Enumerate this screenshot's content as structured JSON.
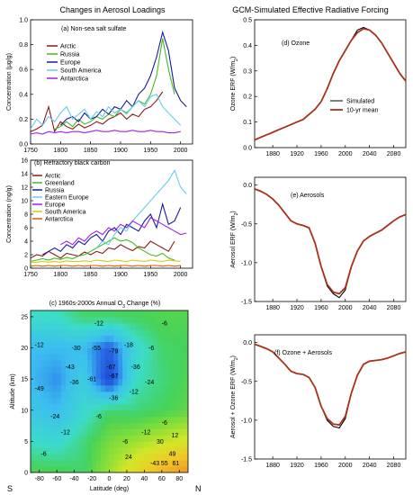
{
  "left_title": "Changes in Aerosol Loadings",
  "right_title": "GCM-Simulated Effective Radiative Forcing",
  "chart_data": [
    {
      "type": "line",
      "id": "a",
      "title": "(a) Non-sea salt sulfate",
      "ylabel": "Concentration (μg/g)",
      "xlim": [
        1750,
        2020
      ],
      "ylim": [
        0,
        1.0
      ],
      "xticks": [
        "1750",
        "1800",
        "1850",
        "1900",
        "1950",
        "2000"
      ],
      "yticks": [
        "0.0",
        "0.2",
        "0.4",
        "0.6",
        "0.8",
        "1.0"
      ],
      "x": [
        1750,
        1760,
        1770,
        1780,
        1790,
        1800,
        1810,
        1820,
        1830,
        1840,
        1850,
        1860,
        1870,
        1880,
        1890,
        1900,
        1910,
        1920,
        1930,
        1940,
        1950,
        1960,
        1970,
        1980,
        1990,
        2000,
        2010
      ],
      "series": [
        {
          "name": "Arctic",
          "color": "#8b1a1a",
          "values": [
            0.1,
            0.12,
            0.15,
            0.3,
            0.1,
            0.18,
            0.14,
            0.12,
            0.16,
            0.13,
            0.15,
            0.18,
            0.16,
            0.2,
            0.22,
            0.25,
            0.2,
            0.24,
            0.22,
            0.28,
            0.3,
            0.35,
            0.42,
            null,
            null,
            null,
            null
          ]
        },
        {
          "name": "Russia",
          "color": "#44bb22",
          "values": [
            null,
            null,
            null,
            null,
            0.12,
            0.14,
            0.18,
            0.14,
            0.2,
            0.16,
            0.18,
            0.22,
            0.2,
            0.24,
            0.22,
            0.28,
            0.25,
            0.3,
            0.35,
            0.32,
            0.4,
            0.55,
            0.85,
            0.6,
            0.4,
            null,
            null
          ]
        },
        {
          "name": "Europe",
          "color": "#1a1aa0",
          "values": [
            null,
            null,
            null,
            null,
            null,
            0.15,
            0.2,
            0.22,
            0.18,
            0.25,
            0.2,
            0.22,
            0.28,
            0.24,
            0.3,
            0.28,
            0.35,
            0.3,
            0.4,
            0.45,
            0.55,
            0.7,
            0.9,
            0.75,
            0.45,
            0.35,
            0.3
          ]
        },
        {
          "name": "South America",
          "color": "#66ccee",
          "values": [
            0.12,
            0.2,
            0.15,
            0.22,
            0.18,
            0.25,
            0.3,
            0.2,
            0.24,
            0.28,
            0.2,
            0.26,
            0.22,
            0.3,
            0.25,
            0.28,
            0.24,
            0.3,
            0.35,
            0.3,
            0.38,
            0.4,
            0.3,
            0.25,
            0.2,
            0.15,
            null
          ]
        },
        {
          "name": "Antarctica",
          "color": "#a020f0",
          "values": [
            0.08,
            0.09,
            0.08,
            0.1,
            0.09,
            0.1,
            0.09,
            0.1,
            0.1,
            0.09,
            0.1,
            0.11,
            0.1,
            0.1,
            0.11,
            0.1,
            0.1,
            0.11,
            0.1,
            0.1,
            0.11,
            0.1,
            0.1,
            0.09,
            0.09,
            0.1,
            null
          ]
        }
      ],
      "legend": "top-left"
    },
    {
      "type": "line",
      "id": "b",
      "title": "(b) Refractory black carbon",
      "ylabel": "Concentration (ng/g)",
      "xlim": [
        1750,
        2020
      ],
      "ylim": [
        0,
        16
      ],
      "xticks": [
        "1750",
        "1800",
        "1850",
        "1900",
        "1950",
        "2000"
      ],
      "yticks": [
        "0",
        "2",
        "4",
        "6",
        "8",
        "10",
        "12",
        "14",
        "16"
      ],
      "x": [
        1750,
        1760,
        1770,
        1780,
        1790,
        1800,
        1810,
        1820,
        1830,
        1840,
        1850,
        1860,
        1870,
        1880,
        1890,
        1900,
        1910,
        1920,
        1930,
        1940,
        1950,
        1960,
        1970,
        1980,
        1990,
        2000,
        2010
      ],
      "series": [
        {
          "name": "Arctic",
          "color": "#8b1a1a",
          "values": [
            1.5,
            2.0,
            1.8,
            2.5,
            2.0,
            1.5,
            2.2,
            2.0,
            1.8,
            2.4,
            2.0,
            2.5,
            2.2,
            3.0,
            2.8,
            3.5,
            3.0,
            2.6,
            3.2,
            3.0,
            4.0,
            3.5,
            3.0,
            2.5,
            4.0,
            null,
            null
          ]
        },
        {
          "name": "Greenland",
          "color": "#44bb22",
          "values": [
            1.0,
            1.2,
            1.4,
            1.2,
            1.5,
            1.3,
            1.6,
            1.4,
            1.8,
            2.0,
            2.5,
            3.0,
            3.5,
            4.0,
            4.5,
            4.0,
            4.2,
            3.8,
            3.0,
            2.5,
            2.0,
            1.8,
            2.2,
            1.5,
            1.2,
            null,
            null
          ]
        },
        {
          "name": "Russia",
          "color": "#1a1aa0",
          "values": [
            null,
            null,
            2.0,
            2.5,
            3.0,
            2.5,
            3.5,
            3.0,
            4.0,
            3.5,
            4.5,
            5.0,
            4.0,
            5.5,
            6.0,
            5.0,
            6.5,
            6.0,
            5.5,
            7.0,
            8.0,
            6.0,
            9.5,
            6.5,
            7.0,
            9.0,
            null
          ]
        },
        {
          "name": "Eastern Europe",
          "color": "#66ccee",
          "values": [
            null,
            null,
            null,
            null,
            null,
            null,
            null,
            null,
            null,
            null,
            null,
            3.0,
            4.0,
            3.5,
            5.0,
            6.0,
            5.5,
            7.0,
            8.0,
            9.0,
            10.0,
            11.0,
            12.0,
            13.0,
            14.5,
            12.0,
            11.0
          ]
        },
        {
          "name": "Europe",
          "color": "#a020f0",
          "values": [
            null,
            null,
            null,
            null,
            null,
            3.5,
            4.0,
            3.5,
            4.5,
            4.0,
            5.0,
            5.5,
            5.0,
            6.0,
            5.5,
            6.5,
            6.0,
            7.0,
            6.5,
            6.0,
            7.5,
            7.0,
            6.5,
            6.0,
            5.5,
            5.0,
            5.2
          ]
        },
        {
          "name": "South America",
          "color": "#cccc00",
          "values": [
            0.8,
            0.9,
            1.0,
            0.9,
            1.0,
            0.9,
            1.1,
            1.0,
            1.0,
            1.1,
            1.0,
            1.2,
            1.1,
            1.0,
            1.2,
            1.1,
            1.0,
            1.2,
            1.1,
            1.0,
            1.2,
            1.1,
            1.0,
            1.2,
            1.1,
            1.0,
            null
          ]
        },
        {
          "name": "Antarctica",
          "color": "#d85a00",
          "values": [
            0.3,
            0.4,
            0.3,
            0.4,
            0.3,
            0.4,
            0.4,
            0.3,
            0.4,
            0.3,
            0.4,
            0.4,
            0.3,
            0.4,
            0.3,
            0.4,
            0.4,
            0.3,
            0.4,
            0.3,
            0.4,
            0.4,
            0.3,
            0.4,
            0.3,
            0.4,
            null
          ]
        }
      ],
      "legend": "top-left"
    },
    {
      "type": "heatmap",
      "id": "c",
      "title": "(c) 1960s-2000s Annual O3 Change (%)",
      "title_parts": [
        "(c) 1960s-2000s Annual O",
        "3",
        " Change (%)"
      ],
      "xlabel": "Latitude (deg)",
      "ylabel": "Altitude (km)",
      "xlim": [
        -90,
        90
      ],
      "ylim": [
        0,
        26
      ],
      "xticks": [
        "-80",
        "-60",
        "-40",
        "-20",
        "0",
        "20",
        "40",
        "60",
        "80"
      ],
      "yticks": [
        "0",
        "5",
        "10",
        "15",
        "20",
        "25"
      ],
      "corner_left": "S",
      "corner_right": "N",
      "grid_lat": [
        -90,
        -60,
        -30,
        0,
        30,
        60,
        90
      ],
      "grid_alt": [
        25,
        20,
        15,
        10,
        5,
        0
      ],
      "grid_values": [
        [
          -20,
          -20,
          -10,
          -10,
          -8,
          -6,
          -6
        ],
        [
          -40,
          -40,
          -40,
          -60,
          -25,
          -10,
          -8
        ],
        [
          -40,
          -49,
          -30,
          -70,
          -20,
          -12,
          -6
        ],
        [
          -35,
          -40,
          -24,
          -10,
          -12,
          -8,
          -4
        ],
        [
          -20,
          -24,
          -12,
          0,
          6,
          12,
          18
        ],
        [
          -6,
          -6,
          -10,
          6,
          24,
          45,
          61
        ]
      ],
      "contour_labels": [
        {
          "lat": -12,
          "alt": 24,
          "text": "-12"
        },
        {
          "lat": 63,
          "alt": 24,
          "text": "-6"
        },
        {
          "lat": -80,
          "alt": 20.5,
          "text": "-12"
        },
        {
          "lat": -38,
          "alt": 20,
          "text": "-30"
        },
        {
          "lat": -15,
          "alt": 20,
          "text": "-55"
        },
        {
          "lat": 5,
          "alt": 19.5,
          "text": "-79"
        },
        {
          "lat": 22,
          "alt": 20.5,
          "text": "-18"
        },
        {
          "lat": 48,
          "alt": 20,
          "text": "-6"
        },
        {
          "lat": -45,
          "alt": 17,
          "text": "-43"
        },
        {
          "lat": 2,
          "alt": 17,
          "text": "-67"
        },
        {
          "lat": 30,
          "alt": 17,
          "text": "-36"
        },
        {
          "lat": -80,
          "alt": 13.5,
          "text": "-49"
        },
        {
          "lat": -40,
          "alt": 14.5,
          "text": "-36"
        },
        {
          "lat": -20,
          "alt": 15,
          "text": "-61"
        },
        {
          "lat": 5,
          "alt": 15.5,
          "text": "-67"
        },
        {
          "lat": 46,
          "alt": 14.5,
          "text": "-24"
        },
        {
          "lat": 5,
          "alt": 12,
          "text": "-36"
        },
        {
          "lat": 28,
          "alt": 13,
          "text": "-12"
        },
        {
          "lat": -62,
          "alt": 9,
          "text": "-24"
        },
        {
          "lat": -12,
          "alt": 9,
          "text": "-6"
        },
        {
          "lat": 63,
          "alt": 8,
          "text": "-6"
        },
        {
          "lat": -50,
          "alt": 6.5,
          "text": "-12"
        },
        {
          "lat": 42,
          "alt": 6.5,
          "text": "-12"
        },
        {
          "lat": 18,
          "alt": 5,
          "text": "-6"
        },
        {
          "lat": 58,
          "alt": 5,
          "text": "30"
        },
        {
          "lat": 75,
          "alt": 6,
          "text": "12"
        },
        {
          "lat": -75,
          "alt": 3,
          "text": "-6"
        },
        {
          "lat": 22,
          "alt": 2.5,
          "text": "24"
        },
        {
          "lat": 72,
          "alt": 3,
          "text": "49"
        },
        {
          "lat": 52,
          "alt": 1.5,
          "text": "-43"
        },
        {
          "lat": 63,
          "alt": 1.5,
          "text": "55"
        },
        {
          "lat": 76,
          "alt": 1.5,
          "text": "61"
        }
      ]
    },
    {
      "type": "line",
      "id": "d",
      "title": "(d) Ozone",
      "ylabel_parts": [
        "Ozone ERF (W/m",
        "2",
        ")"
      ],
      "xlim": [
        1850,
        2100
      ],
      "ylim": [
        0,
        0.5
      ],
      "xticks": [
        "1880",
        "1920",
        "1960",
        "2000",
        "2040",
        "2080"
      ],
      "yticks": [
        "0.0",
        "0.1",
        "0.2",
        "0.3",
        "0.4",
        "0.5"
      ],
      "x": [
        1850,
        1860,
        1870,
        1880,
        1890,
        1900,
        1910,
        1920,
        1930,
        1940,
        1950,
        1960,
        1970,
        1980,
        1990,
        2000,
        2010,
        2020,
        2030,
        2040,
        2050,
        2060,
        2070,
        2080,
        2090,
        2100
      ],
      "series": [
        {
          "name": "Simulated",
          "color": "#000000",
          "values": [
            0.03,
            0.04,
            0.05,
            0.06,
            0.07,
            0.08,
            0.09,
            0.1,
            0.11,
            0.13,
            0.15,
            0.18,
            0.23,
            0.29,
            0.34,
            0.38,
            0.42,
            0.46,
            0.47,
            0.46,
            0.44,
            0.41,
            0.37,
            0.33,
            0.29,
            0.26
          ]
        },
        {
          "name": "10-yr mean",
          "color": "#a8321c",
          "values": [
            0.03,
            0.04,
            0.05,
            0.06,
            0.07,
            0.08,
            0.09,
            0.1,
            0.11,
            0.13,
            0.15,
            0.18,
            0.23,
            0.29,
            0.34,
            0.38,
            0.42,
            0.45,
            0.465,
            0.46,
            0.44,
            0.41,
            0.37,
            0.33,
            0.29,
            0.26
          ]
        }
      ],
      "legend": "lower-right"
    },
    {
      "type": "line",
      "id": "e",
      "title": "(e) Aerosols",
      "ylabel_parts": [
        "Aerosol ERF (W/m",
        "2",
        ")"
      ],
      "xlim": [
        1850,
        2100
      ],
      "ylim": [
        -1.5,
        0.1
      ],
      "xticks": [
        "1880",
        "1920",
        "1960",
        "2000",
        "2040",
        "2080"
      ],
      "yticks": [
        "0.0",
        "-0.5",
        "-1.0",
        "-1.5"
      ],
      "x": [
        1850,
        1860,
        1870,
        1880,
        1890,
        1900,
        1910,
        1920,
        1930,
        1940,
        1950,
        1960,
        1970,
        1980,
        1990,
        2000,
        2010,
        2020,
        2030,
        2040,
        2050,
        2060,
        2070,
        2080,
        2090,
        2100
      ],
      "series": [
        {
          "name": "Simulated",
          "color": "#000000",
          "values": [
            -0.05,
            -0.08,
            -0.12,
            -0.18,
            -0.26,
            -0.36,
            -0.46,
            -0.5,
            -0.52,
            -0.55,
            -0.75,
            -1.05,
            -1.3,
            -1.4,
            -1.45,
            -1.35,
            -1.05,
            -0.85,
            -0.72,
            -0.66,
            -0.62,
            -0.58,
            -0.52,
            -0.46,
            -0.41,
            -0.38
          ]
        },
        {
          "name": "10-yr mean",
          "color": "#a8321c",
          "values": [
            -0.05,
            -0.08,
            -0.12,
            -0.18,
            -0.26,
            -0.36,
            -0.46,
            -0.5,
            -0.52,
            -0.55,
            -0.75,
            -1.05,
            -1.28,
            -1.38,
            -1.4,
            -1.32,
            -1.05,
            -0.85,
            -0.72,
            -0.66,
            -0.62,
            -0.58,
            -0.52,
            -0.46,
            -0.41,
            -0.38
          ]
        }
      ]
    },
    {
      "type": "line",
      "id": "f",
      "title": "(f) Ozone + Aerosols",
      "ylabel_parts": [
        "Aerosol + Ozone ERF (W/m",
        "2",
        ")"
      ],
      "xlim": [
        1850,
        2100
      ],
      "ylim": [
        -1.5,
        0.1
      ],
      "xticks": [
        "1880",
        "1920",
        "1960",
        "2000",
        "2040",
        "2080"
      ],
      "yticks": [
        "0.0",
        "-0.5",
        "-1.0",
        "-1.5"
      ],
      "x": [
        1850,
        1860,
        1870,
        1880,
        1890,
        1900,
        1910,
        1920,
        1930,
        1940,
        1950,
        1960,
        1970,
        1980,
        1990,
        2000,
        2010,
        2020,
        2030,
        2040,
        2050,
        2060,
        2070,
        2080,
        2090,
        2100
      ],
      "series": [
        {
          "name": "Simulated",
          "color": "#000000",
          "values": [
            -0.02,
            -0.05,
            -0.08,
            -0.12,
            -0.2,
            -0.28,
            -0.37,
            -0.4,
            -0.41,
            -0.45,
            -0.58,
            -0.82,
            -1.0,
            -1.08,
            -1.1,
            -0.98,
            -0.65,
            -0.42,
            -0.28,
            -0.24,
            -0.23,
            -0.22,
            -0.2,
            -0.17,
            -0.14,
            -0.12
          ]
        },
        {
          "name": "10-yr mean",
          "color": "#a8321c",
          "values": [
            -0.02,
            -0.05,
            -0.08,
            -0.12,
            -0.2,
            -0.28,
            -0.37,
            -0.4,
            -0.41,
            -0.45,
            -0.58,
            -0.82,
            -0.98,
            -1.05,
            -1.06,
            -0.95,
            -0.65,
            -0.42,
            -0.28,
            -0.24,
            -0.23,
            -0.22,
            -0.2,
            -0.17,
            -0.14,
            -0.12
          ]
        }
      ]
    }
  ]
}
